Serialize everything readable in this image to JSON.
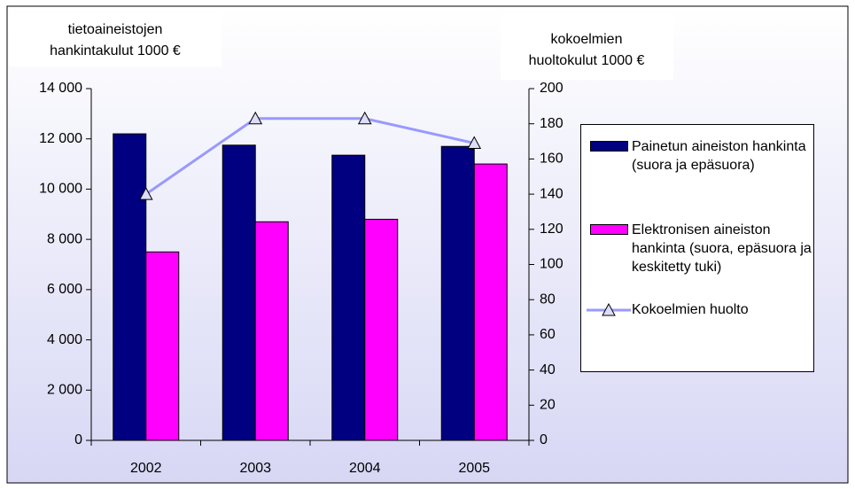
{
  "chart_data": {
    "type": "bar",
    "y_label": [
      "tietoaineistojen",
      "hankintakulut 1000 €"
    ],
    "y2_label": [
      "kokoelmien",
      "huoltokulut 1000 €"
    ],
    "categories": [
      "2002",
      "2003",
      "2004",
      "2005"
    ],
    "series": [
      {
        "name": "Painetun aineiston hankinta (suora ja epäsuora)",
        "color": "#000080",
        "type": "bar",
        "values": [
          12200,
          11750,
          11350,
          11700
        ]
      },
      {
        "name": "Elektronisen aineiston hankinta (suora, epäsuora ja keskitetty tuki)",
        "color": "#ff00ff",
        "type": "bar",
        "values": [
          7500,
          8700,
          8800,
          11000
        ]
      },
      {
        "name": "Kokoelmien huolto",
        "color": "#9999ff",
        "type": "line",
        "marker": "triangle",
        "axis": "y2",
        "values": [
          140,
          183,
          183,
          169
        ]
      }
    ],
    "ylim": [
      0,
      14000
    ],
    "yticks": [
      0,
      {
        "value": 2000,
        "label": "2 000"
      },
      {
        "value": 4000,
        "label": "4 000"
      },
      {
        "value": 6000,
        "label": "6 000"
      },
      {
        "value": 8000,
        "label": "8 000"
      },
      {
        "value": 10000,
        "label": "10 000"
      },
      {
        "value": 12000,
        "label": "12 000"
      },
      {
        "value": 14000,
        "label": "14 000"
      }
    ],
    "y2lim": [
      0,
      200
    ],
    "y2ticks": [
      0,
      20,
      40,
      60,
      80,
      100,
      120,
      140,
      160,
      180,
      200
    ],
    "grid": false,
    "legend": "right"
  }
}
